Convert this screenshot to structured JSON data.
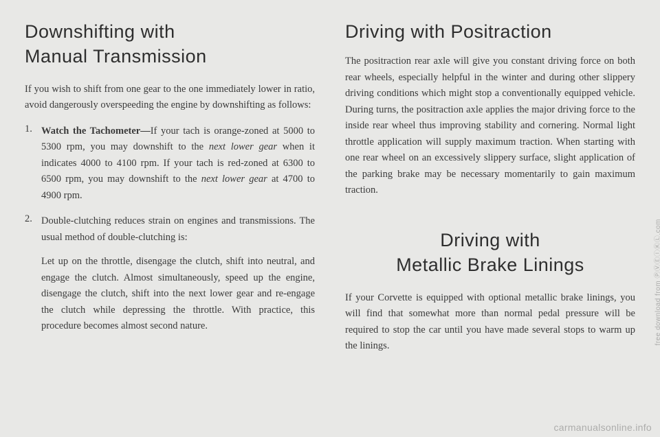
{
  "page": {
    "background_color": "#e8e8e6",
    "text_color": "#3a3a3a",
    "heading_color": "#2e2e2e",
    "heading_font": "Helvetica",
    "body_font": "Georgia",
    "heading_fontsize": 27,
    "body_fontsize": 14.5,
    "line_height": 1.62
  },
  "left": {
    "heading_line1": "Downshifting with",
    "heading_line2": "Manual Transmission",
    "intro": "If you wish to shift from one gear to the one immediately lower in ratio, avoid dangerously overspeeding the engine by downshifting as follows:",
    "item1_bold": "Watch the Tachometer—",
    "item1_a": "If your tach is orange-zoned at 5000 to 5300 rpm, you may downshift to the ",
    "item1_ital1": "next lower gear",
    "item1_b": " when it indicates 4000 to 4100 rpm. If your tach is red-zoned at 6300 to 6500 rpm, you may downshift to the ",
    "item1_ital2": "next lower gear",
    "item1_c": " at 4700 to 4900 rpm.",
    "item2_p1": "Double-clutching reduces strain on engines and transmissions. The usual method of double-clutching is:",
    "item2_p2": "Let up on the throttle, disengage the clutch, shift into neutral, and engage the clutch. Almost simultaneously, speed up the engine, disengage the clutch, shift into the next lower gear and re-engage the clutch while depressing the throttle. With practice, this procedure becomes almost second nature."
  },
  "right": {
    "heading1": "Driving with Positraction",
    "para1": "The positraction rear axle will give you constant driving force on both rear wheels, especially helpful in the winter and during other slippery driving conditions which might stop a conventionally equipped vehicle. During turns, the positraction axle applies the major driving force to the inside rear wheel thus improving stability and cornering. Normal light throttle application will supply maximum traction. When starting with one rear wheel on an excessively slippery surface, slight application of the parking brake may be necessary momentarily to gain maximum traction.",
    "heading2_line1": "Driving with",
    "heading2_line2": "Metallic Brake Linings",
    "para2": "If your Corvette is equipped with optional metallic brake linings, you will find that somewhat more than normal pedal pressure will be required to stop the car until you have made several stops to warm up the linings."
  },
  "watermark": "carmanualsonline.info",
  "sidestamp": "free download from  ⓅⓋⒺⒾⓀⓁ.com"
}
